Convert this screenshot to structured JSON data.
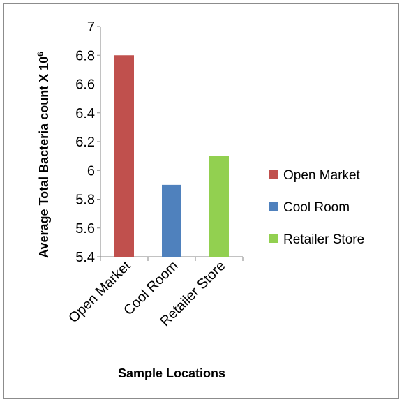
{
  "chart_data": {
    "type": "bar",
    "categories": [
      "Open Market",
      "Cool Room",
      "Retailer Store"
    ],
    "values": [
      6.8,
      5.9,
      6.1
    ],
    "colors": [
      "#c0504d",
      "#4f81bd",
      "#92d050"
    ],
    "title": "",
    "xlabel": "Sample Locations",
    "ylabel": "Average Total Bacteria count X 10",
    "ylabel_superscript": "6",
    "ylim": [
      5.4,
      7
    ],
    "yticks": [
      "5.4",
      "5.6",
      "5.8",
      "6",
      "6.2",
      "6.4",
      "6.6",
      "6.8",
      "7"
    ],
    "grid": false,
    "legend": {
      "position": "right",
      "entries": [
        "Open Market",
        "Cool Room",
        "Retailer Store"
      ]
    }
  }
}
